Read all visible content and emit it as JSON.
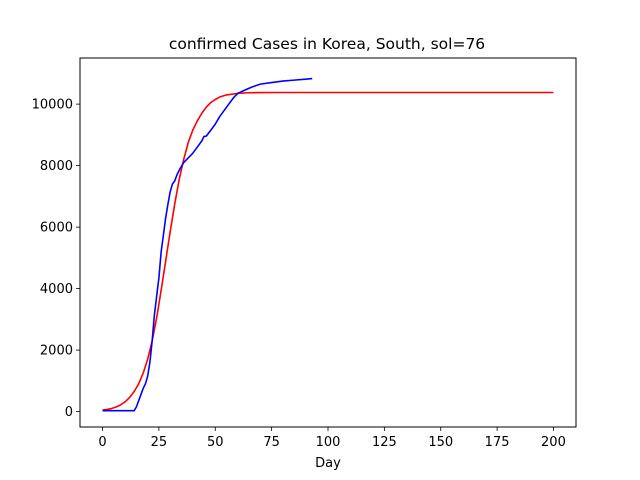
{
  "chart_data": {
    "type": "line",
    "title": "confirmed Cases in Korea, South, sol=76",
    "xlabel": "Day",
    "ylabel": "",
    "xlim": [
      -10,
      210
    ],
    "ylim": [
      -500,
      11500
    ],
    "xticks": [
      0,
      25,
      50,
      75,
      100,
      125,
      150,
      175,
      200
    ],
    "yticks": [
      0,
      2000,
      4000,
      6000,
      8000,
      10000
    ],
    "grid": false,
    "series": [
      {
        "color": "#ff0000",
        "x": [
          0,
          2,
          4,
          6,
          8,
          10,
          12,
          14,
          16,
          18,
          20,
          22,
          24,
          26,
          28,
          30,
          32,
          34,
          36,
          38,
          40,
          42,
          44,
          46,
          48,
          50,
          52,
          55,
          60,
          65,
          70,
          80,
          100,
          150,
          200
        ],
        "values": [
          50,
          70,
          100,
          150,
          220,
          320,
          460,
          650,
          900,
          1250,
          1700,
          2300,
          3050,
          3950,
          4900,
          5850,
          6750,
          7550,
          8200,
          8750,
          9150,
          9450,
          9700,
          9900,
          10050,
          10150,
          10230,
          10300,
          10350,
          10370,
          10375,
          10378,
          10378,
          10378,
          10378
        ]
      },
      {
        "color": "#0000ff",
        "x": [
          0,
          5,
          10,
          14,
          15,
          16,
          17,
          18,
          19,
          20,
          21,
          22,
          23,
          24,
          25,
          26,
          27,
          28,
          29,
          30,
          31,
          32,
          33,
          34,
          35,
          36,
          38,
          40,
          42,
          44,
          45,
          46,
          48,
          50,
          52,
          55,
          58,
          60,
          63,
          66,
          70,
          75,
          80,
          85,
          90,
          93
        ],
        "values": [
          30,
          30,
          30,
          30,
          150,
          350,
          550,
          750,
          900,
          1150,
          1600,
          2300,
          3150,
          3750,
          4350,
          5200,
          5750,
          6300,
          6750,
          7150,
          7400,
          7500,
          7700,
          7850,
          7980,
          8100,
          8250,
          8400,
          8600,
          8800,
          8950,
          8960,
          9150,
          9350,
          9600,
          9900,
          10200,
          10350,
          10450,
          10550,
          10650,
          10700,
          10750,
          10780,
          10810,
          10830
        ]
      }
    ]
  }
}
